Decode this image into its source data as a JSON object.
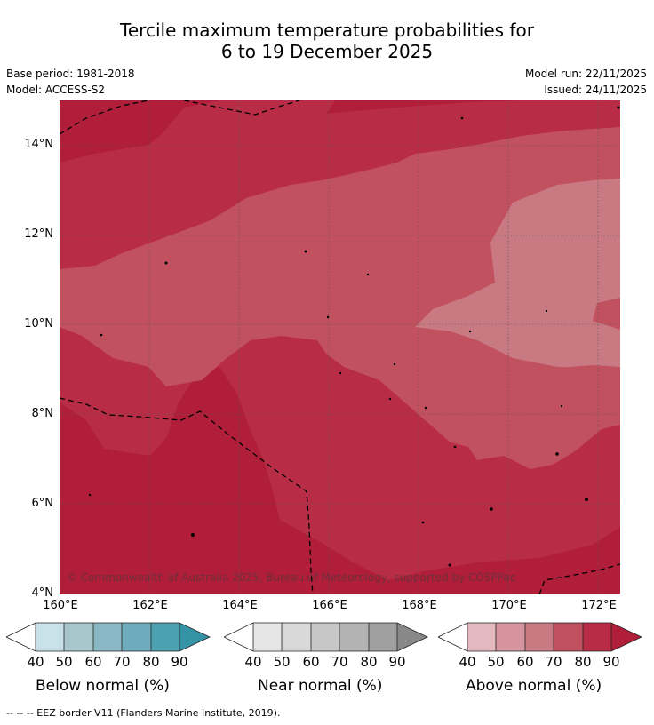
{
  "title": {
    "line1": "Tercile maximum temperature probabilities for",
    "line2": "6 to 19 December 2025"
  },
  "meta": {
    "base_period": "Base period: 1981-2018",
    "model": "Model: ACCESS-S2",
    "model_run": "Model run: 22/11/2025",
    "issued": "Issued: 24/11/2025"
  },
  "map": {
    "copyright": "© Commonwealth of Australia 2025, Bureau of Meteorology, supported by COSPPac",
    "lat_labels": [
      "14°N",
      "12°N",
      "10°N",
      "8°N",
      "6°N",
      "4°N"
    ],
    "lon_labels": [
      "160°E",
      "162°E",
      "164°E",
      "166°E",
      "168°E",
      "170°E",
      "172°E"
    ],
    "lat_range": [
      4,
      15.05
    ],
    "lon_range": [
      160,
      172.5
    ]
  },
  "legend": {
    "ticks": [
      "40",
      "50",
      "60",
      "70",
      "80",
      "90"
    ],
    "below": {
      "label": "Below normal (%)",
      "colors": [
        "#ffffff",
        "#c9e1e8",
        "#a7c7cc",
        "#89b8c4",
        "#6cacbc",
        "#4ba0b2",
        "#3593a6"
      ]
    },
    "near": {
      "label": "Near normal (%)",
      "colors": [
        "#ffffff",
        "#e6e6e6",
        "#d9d9d9",
        "#c7c7c7",
        "#b3b3b3",
        "#a0a0a0",
        "#888888"
      ]
    },
    "above": {
      "label": "Above normal (%)",
      "colors": [
        "#ffffff",
        "#e3b8be",
        "#d6959e",
        "#c97982",
        "#c2515f",
        "#b82d45",
        "#b01e3a"
      ]
    }
  },
  "footer": "--  --  -- EEZ border V11 (Flanders Marine Institute, 2019)."
}
